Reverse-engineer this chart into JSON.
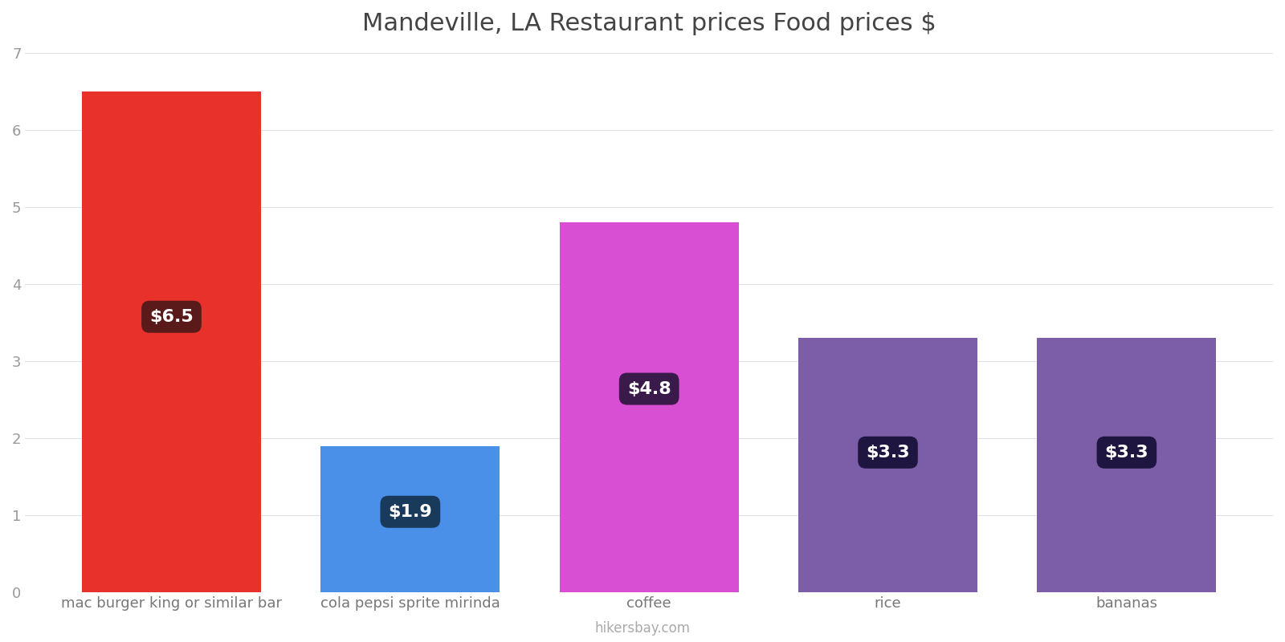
{
  "title": "Mandeville, LA Restaurant prices Food prices $",
  "categories": [
    "mac burger king or similar bar",
    "cola pepsi sprite mirinda",
    "coffee",
    "rice",
    "bananas"
  ],
  "values": [
    6.5,
    1.9,
    4.8,
    3.3,
    3.3
  ],
  "bar_colors": [
    "#e8312a",
    "#4a8fe8",
    "#d94fd4",
    "#7b5ea7",
    "#7b5ea7"
  ],
  "label_texts": [
    "$6.5",
    "$1.9",
    "$4.8",
    "$3.3",
    "$3.3"
  ],
  "label_bg_colors": [
    "#5a1a1a",
    "#1a3a5c",
    "#3a1a4a",
    "#1e1640",
    "#1e1640"
  ],
  "ylim": [
    0,
    7
  ],
  "yticks": [
    0,
    1,
    2,
    3,
    4,
    5,
    6,
    7
  ],
  "title_fontsize": 22,
  "tick_fontsize": 13,
  "label_fontsize": 16,
  "watermark": "hikersbay.com",
  "bg_color": "#ffffff",
  "grid_color": "#e0e0e8",
  "bar_width": 0.75
}
